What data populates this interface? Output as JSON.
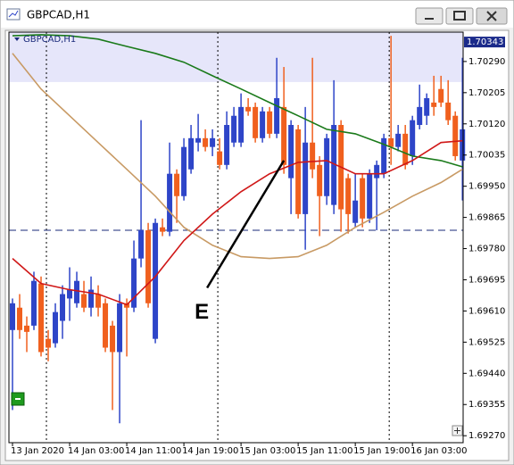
{
  "window": {
    "title": "GBPCAD,H1"
  },
  "chart_data": {
    "type": "candlestick",
    "symbol_label": "GBPCAD,H1",
    "up_color": "#2e45c8",
    "down_color": "#f0601e",
    "open": [
      1.69558,
      1.69619,
      1.6957,
      1.6957,
      1.69685,
      1.69534,
      1.69522,
      1.69583,
      1.69644,
      1.69631,
      1.69656,
      1.69619,
      1.69656,
      1.69631,
      1.6957,
      1.69498,
      1.69631,
      1.69619,
      1.69753,
      1.6983,
      1.69534,
      1.69838,
      1.69826,
      1.69984,
      1.69923,
      1.69996,
      1.70069,
      1.70081,
      1.70057,
      1.70045,
      1.70008,
      1.70069,
      1.70069,
      1.70166,
      1.70166,
      1.70081,
      1.70154,
      1.70093,
      1.70166,
      1.69972,
      1.70105,
      1.69874,
      1.70069,
      1.70008,
      1.69923,
      1.69899,
      1.70117,
      1.69972,
      1.6985,
      1.69972,
      1.69862,
      1.69972,
      1.69984,
      1.70081,
      1.70057,
      1.70093,
      1.70032,
      1.70117,
      1.70142,
      1.70178,
      1.70215,
      1.70178,
      1.70142,
      1.7002
    ],
    "high": [
      1.69644,
      1.69656,
      1.69595,
      1.69717,
      1.69704,
      1.69558,
      1.69631,
      1.6968,
      1.69729,
      1.69717,
      1.69692,
      1.69704,
      1.6968,
      1.69644,
      1.69583,
      1.69656,
      1.69644,
      1.69802,
      1.7013,
      1.6985,
      1.69862,
      1.69862,
      1.70069,
      1.69996,
      1.70081,
      1.70117,
      1.70147,
      1.70105,
      1.70105,
      1.70081,
      1.70154,
      1.70166,
      1.70203,
      1.7019,
      1.70178,
      1.70166,
      1.70166,
      1.703,
      1.70275,
      1.7013,
      1.70117,
      1.70166,
      1.703,
      1.70032,
      1.70093,
      1.70239,
      1.7013,
      1.69984,
      1.69984,
      1.69984,
      1.69996,
      1.7002,
      1.70093,
      1.7036,
      1.70117,
      1.70117,
      1.70142,
      1.70227,
      1.70203,
      1.70251,
      1.70251,
      1.70239,
      1.70154,
      1.703
    ],
    "low": [
      1.6934,
      1.69534,
      1.69498,
      1.69558,
      1.69486,
      1.69473,
      1.6951,
      1.69534,
      1.69583,
      1.69619,
      1.69607,
      1.69595,
      1.69595,
      1.69498,
      1.6934,
      1.69304,
      1.69486,
      1.69607,
      1.69729,
      1.69619,
      1.69522,
      1.69814,
      1.69814,
      1.6985,
      1.69911,
      1.69984,
      1.70045,
      1.70045,
      1.70032,
      1.69996,
      1.69996,
      1.70057,
      1.70057,
      1.70142,
      1.70069,
      1.70069,
      1.70081,
      1.70081,
      1.69984,
      1.69874,
      1.69862,
      1.69777,
      1.69972,
      1.69814,
      1.69899,
      1.69874,
      1.69826,
      1.69821,
      1.69838,
      1.69838,
      1.6985,
      1.6983,
      1.69972,
      1.70008,
      1.70045,
      1.69996,
      1.70008,
      1.70105,
      1.70117,
      1.70142,
      1.70166,
      1.70117,
      1.7002,
      1.69911
    ],
    "close": [
      1.69631,
      1.69558,
      1.69553,
      1.69692,
      1.69498,
      1.6951,
      1.69607,
      1.69656,
      1.69668,
      1.69692,
      1.69619,
      1.69668,
      1.69619,
      1.6951,
      1.69498,
      1.69631,
      1.69619,
      1.69753,
      1.6983,
      1.69631,
      1.6985,
      1.69826,
      1.69984,
      1.69923,
      1.70057,
      1.70081,
      1.70081,
      1.70057,
      1.70081,
      1.70008,
      1.70117,
      1.70142,
      1.70166,
      1.70154,
      1.70081,
      1.70154,
      1.70093,
      1.7019,
      1.70008,
      1.70117,
      1.69874,
      1.70069,
      1.69996,
      1.69923,
      1.70081,
      1.70117,
      1.69887,
      1.69874,
      1.69911,
      1.69862,
      1.69984,
      1.70008,
      1.70081,
      1.70057,
      1.70093,
      1.70008,
      1.7013,
      1.70166,
      1.7019,
      1.70166,
      1.70178,
      1.7013,
      1.70032,
      1.70105
    ],
    "overlays": [
      {
        "color": "#1a7a1a",
        "x": [
          0,
          4,
          8,
          12,
          16,
          20,
          24,
          28,
          32,
          36,
          40,
          44,
          48,
          52,
          56,
          60,
          63
        ],
        "values": [
          1.7036,
          1.70363,
          1.7036,
          1.70351,
          1.70331,
          1.70312,
          1.70288,
          1.70251,
          1.70215,
          1.70178,
          1.70142,
          1.70105,
          1.70093,
          1.70064,
          1.70032,
          1.7002,
          1.70003
        ]
      },
      {
        "color": "#c89a64",
        "x": [
          0,
          4,
          8,
          12,
          16,
          20,
          24,
          28,
          32,
          36,
          40,
          44,
          48,
          52,
          56,
          60,
          63
        ],
        "values": [
          1.70312,
          1.70215,
          1.70142,
          1.70069,
          1.69996,
          1.69923,
          1.69838,
          1.69789,
          1.69758,
          1.69753,
          1.69758,
          1.69789,
          1.69838,
          1.69879,
          1.69923,
          1.6996,
          1.69996
        ]
      },
      {
        "color": "#d01818",
        "x": [
          0,
          4,
          8,
          12,
          16,
          20,
          24,
          28,
          32,
          36,
          40,
          44,
          48,
          52,
          56,
          60,
          63
        ],
        "values": [
          1.69753,
          1.69685,
          1.69668,
          1.69656,
          1.69627,
          1.69704,
          1.69802,
          1.69874,
          1.69935,
          1.69984,
          1.70015,
          1.7002,
          1.69984,
          1.69984,
          1.7002,
          1.70069,
          1.70074
        ]
      }
    ],
    "zone": [
      1.70234,
      1.7037
    ],
    "zone_color": "#e6e6fa",
    "hline": 1.6983,
    "period_separators": [
      4.75,
      28.75,
      52.75
    ],
    "annotation": {
      "text": "E",
      "from": [
        38,
        1.7002
      ],
      "to": [
        27.25,
        1.69673
      ]
    },
    "current_price": {
      "value": 1.70343,
      "label": "1.70343"
    },
    "xlim": [
      -0.5,
      63.1
    ],
    "ylim": [
      1.69251,
      1.7037
    ],
    "xticks": [
      {
        "value": 0,
        "label": "13 Jan 2020"
      },
      {
        "value": 8,
        "label": "14 Jan 03:00"
      },
      {
        "value": 16,
        "label": "14 Jan 11:00"
      },
      {
        "value": 24,
        "label": "14 Jan 19:00"
      },
      {
        "value": 32,
        "label": "15 Jan 03:00"
      },
      {
        "value": 40,
        "label": "15 Jan 11:00"
      },
      {
        "value": 48,
        "label": "15 Jan 19:00"
      },
      {
        "value": 56,
        "label": "16 Jan 03:00"
      }
    ],
    "yticks": [
      {
        "value": 1.7029,
        "label": "1.70290"
      },
      {
        "value": 1.70205,
        "label": "1.70205"
      },
      {
        "value": 1.7012,
        "label": "1.70120"
      },
      {
        "value": 1.70035,
        "label": "1.70035"
      },
      {
        "value": 1.6995,
        "label": "1.69950"
      },
      {
        "value": 1.69865,
        "label": "1.69865"
      },
      {
        "value": 1.6978,
        "label": "1.69780"
      },
      {
        "value": 1.69695,
        "label": "1.69695"
      },
      {
        "value": 1.6961,
        "label": "1.69610"
      },
      {
        "value": 1.69525,
        "label": "1.69525"
      },
      {
        "value": 1.6944,
        "label": "1.69440"
      },
      {
        "value": 1.69355,
        "label": "1.69355"
      },
      {
        "value": 1.6927,
        "label": "1.69270"
      }
    ]
  }
}
